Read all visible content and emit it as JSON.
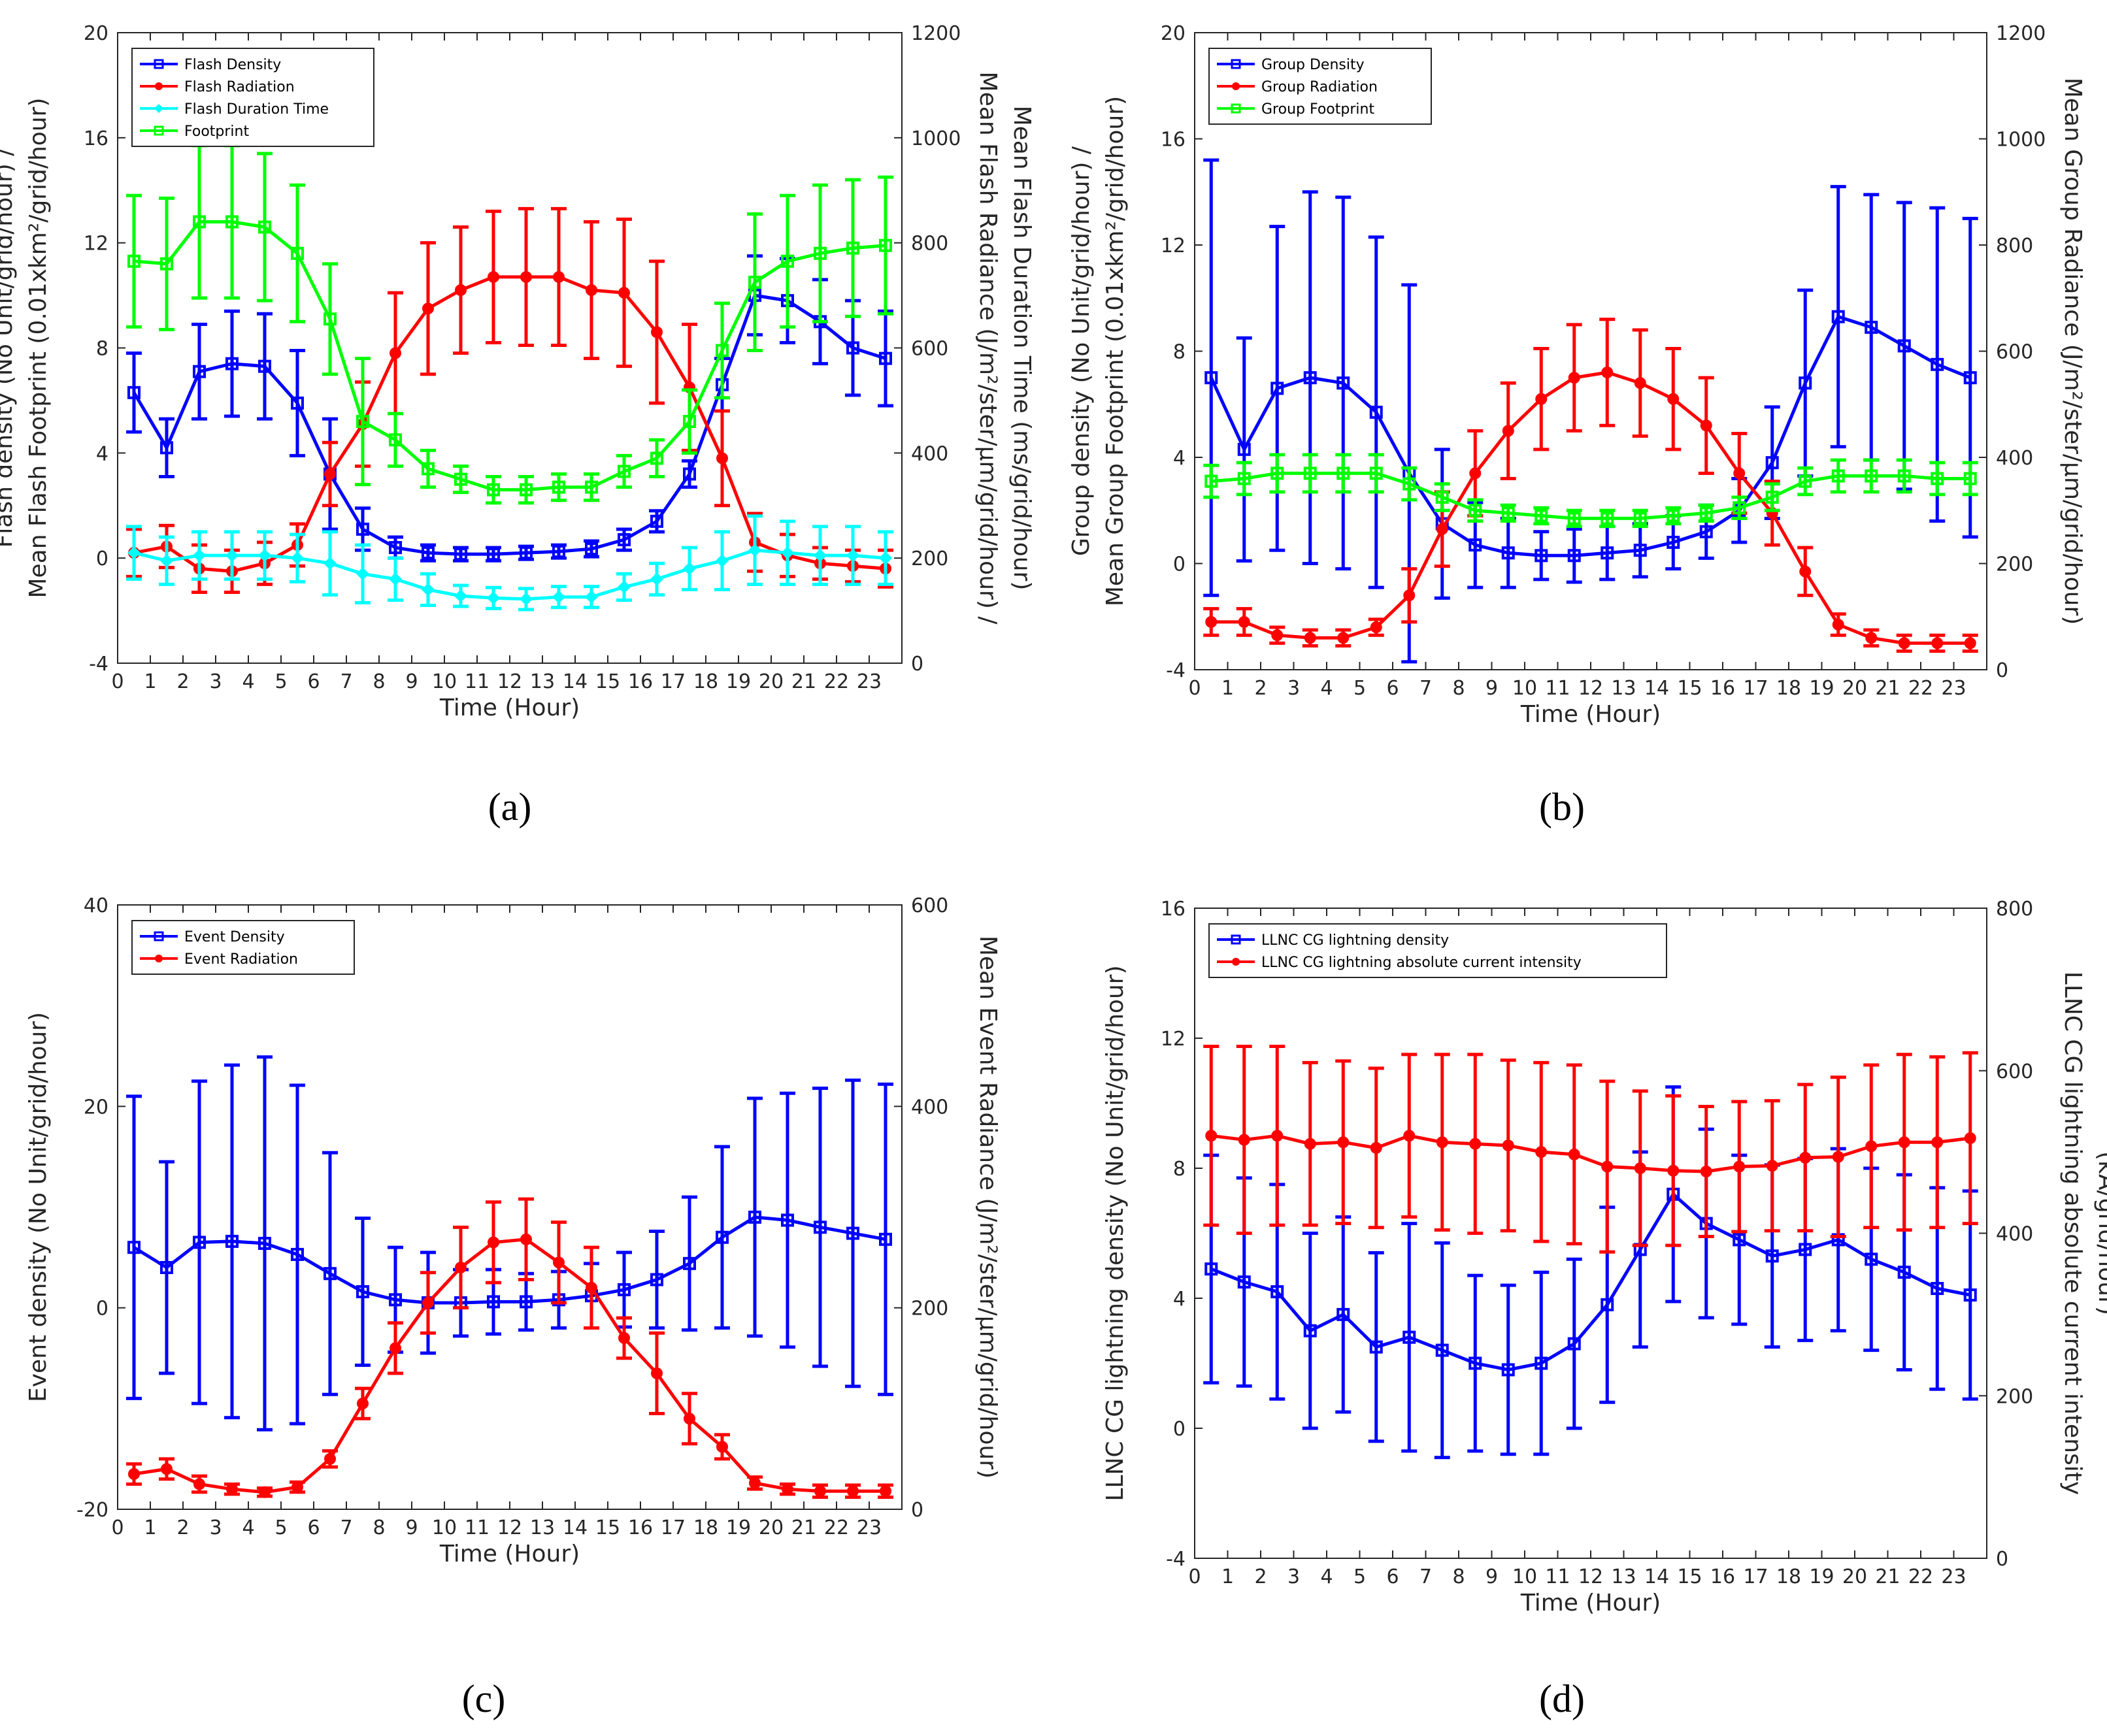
{
  "panels": [
    {
      "caption": "(a)",
      "xlabel": "Time (Hour)",
      "ylabel_left": [
        "Flash density (No Unit/grid/hour) /",
        "Mean Flash Footprint (0.01xkm²/grid/hour)"
      ],
      "ylabel_right": [
        "Mean Flash Radiance (J/m²/ster/μm/grid/hour) /",
        "Mean Flash Duration Time (ms/grid/hour)"
      ],
      "ylim_left": [
        -4,
        20
      ],
      "yticks_left": [
        -4,
        0,
        4,
        8,
        12,
        16,
        20
      ],
      "ylim_right": [
        0,
        1200
      ],
      "yticks_right": [
        0,
        200,
        400,
        600,
        800,
        1000,
        1200
      ],
      "xticks": [
        0,
        1,
        2,
        3,
        4,
        5,
        6,
        7,
        8,
        9,
        10,
        11,
        12,
        13,
        14,
        15,
        16,
        17,
        18,
        19,
        20,
        21,
        22,
        23
      ],
      "legend": [
        "Flash Density",
        "Flash Radiation",
        "Flash Duration Time",
        "Footprint"
      ]
    },
    {
      "caption": "(b)",
      "xlabel": "Time (Hour)",
      "ylabel_left": [
        "Group density (No Unit/grid/hour) /",
        "Mean Group Footprint (0.01xkm²/grid/hour)"
      ],
      "ylabel_right": [
        "Mean Group Radiance (J/m²/ster/μm/grid/hour)"
      ],
      "ylim_left": [
        -4,
        20
      ],
      "yticks_left": [
        -4,
        0,
        4,
        8,
        12,
        16,
        20
      ],
      "ylim_right": [
        0,
        1200
      ],
      "yticks_right": [
        0,
        200,
        400,
        600,
        800,
        1000,
        1200
      ],
      "xticks": [
        0,
        1,
        2,
        3,
        4,
        5,
        6,
        7,
        8,
        9,
        10,
        11,
        12,
        13,
        14,
        15,
        16,
        17,
        18,
        19,
        20,
        21,
        22,
        23
      ],
      "legend": [
        "Group Density",
        "Group Radiation",
        "Group Footprint"
      ]
    },
    {
      "caption": "(c)",
      "xlabel": "Time (Hour)",
      "ylabel_left": [
        "Event density (No Unit/grid/hour)"
      ],
      "ylabel_right": [
        "Mean Event Radiance (J/m²/ster/μm/grid/hour)"
      ],
      "ylim_left": [
        -20,
        40
      ],
      "yticks_left": [
        -20,
        0,
        20,
        40
      ],
      "ylim_right": [
        0,
        600
      ],
      "yticks_right": [
        0,
        200,
        400,
        600
      ],
      "xticks": [
        0,
        1,
        2,
        3,
        4,
        5,
        6,
        7,
        8,
        9,
        10,
        11,
        12,
        13,
        14,
        15,
        16,
        17,
        18,
        19,
        20,
        21,
        22,
        23
      ],
      "legend": [
        "Event Density",
        "Event Radiation"
      ]
    },
    {
      "caption": "(d)",
      "xlabel": "Time (Hour)",
      "ylabel_left": [
        "LLNC CG lightning density (No Unit/grid/hour)"
      ],
      "ylabel_right": [
        "LLNC CG lightning absolute current intensity",
        "(kA/grid/hour)"
      ],
      "ylim_left": [
        -4,
        16
      ],
      "yticks_left": [
        -4,
        0,
        4,
        8,
        12,
        16
      ],
      "ylim_right": [
        0,
        800
      ],
      "yticks_right": [
        0,
        200,
        400,
        600,
        800
      ],
      "xticks": [
        0,
        1,
        2,
        3,
        4,
        5,
        6,
        7,
        8,
        9,
        10,
        11,
        12,
        13,
        14,
        15,
        16,
        17,
        18,
        19,
        20,
        21,
        22,
        23
      ],
      "legend": [
        "LLNC CG lightning density",
        "LLNC CG lightning absolute current intensity"
      ]
    }
  ],
  "chart_data": [
    {
      "type": "line",
      "x": [
        0.5,
        1.5,
        2.5,
        3.5,
        4.5,
        5.5,
        6.5,
        7.5,
        8.5,
        9.5,
        10.5,
        11.5,
        12.5,
        13.5,
        14.5,
        15.5,
        16.5,
        17.5,
        18.5,
        19.5,
        20.5,
        21.5,
        22.5,
        23.5
      ],
      "xlim": [
        0,
        24
      ],
      "series": [
        {
          "name": "Flash Density",
          "axis": "left",
          "color": "#0000ff",
          "marker": "square",
          "values": [
            6.3,
            4.2,
            7.1,
            7.4,
            7.3,
            5.9,
            3.2,
            1.1,
            0.4,
            0.2,
            0.15,
            0.15,
            0.2,
            0.25,
            0.35,
            0.7,
            1.4,
            3.2,
            6.6,
            10.0,
            9.8,
            9.0,
            8.0,
            7.6
          ],
          "err": [
            1.5,
            1.1,
            1.8,
            2.0,
            2.0,
            2.0,
            2.1,
            0.8,
            0.4,
            0.3,
            0.25,
            0.25,
            0.25,
            0.25,
            0.3,
            0.4,
            0.4,
            0.5,
            1.0,
            1.5,
            1.6,
            1.6,
            1.8,
            1.8
          ]
        },
        {
          "name": "Flash Radiation",
          "axis": "right",
          "color": "#ff0000",
          "marker": "circle",
          "values": [
            210,
            222,
            180,
            175,
            190,
            225,
            360,
            455,
            590,
            675,
            710,
            735,
            735,
            735,
            710,
            705,
            630,
            525,
            390,
            230,
            205,
            190,
            185,
            180
          ],
          "err": [
            45,
            40,
            45,
            40,
            40,
            40,
            60,
            80,
            115,
            125,
            120,
            125,
            130,
            130,
            130,
            140,
            135,
            120,
            90,
            55,
            40,
            30,
            30,
            35
          ]
        },
        {
          "name": "Flash Duration Time",
          "axis": "right",
          "color": "#00ffff",
          "marker": "diamond",
          "values": [
            210,
            195,
            205,
            205,
            205,
            200,
            190,
            170,
            160,
            140,
            128,
            124,
            122,
            126,
            126,
            145,
            160,
            180,
            195,
            215,
            210,
            205,
            205,
            200
          ],
          "err": [
            50,
            45,
            45,
            45,
            45,
            45,
            60,
            55,
            40,
            30,
            20,
            20,
            20,
            20,
            20,
            25,
            30,
            40,
            55,
            65,
            60,
            55,
            55,
            50
          ]
        },
        {
          "name": "Footprint",
          "axis": "left",
          "color": "#00ff00",
          "marker": "square",
          "values": [
            11.3,
            11.2,
            12.8,
            12.8,
            12.6,
            11.6,
            9.1,
            5.2,
            4.5,
            3.4,
            3.0,
            2.6,
            2.6,
            2.7,
            2.7,
            3.3,
            3.8,
            5.2,
            7.9,
            10.5,
            11.3,
            11.6,
            11.8,
            11.9
          ],
          "err": [
            2.5,
            2.5,
            2.9,
            2.9,
            2.8,
            2.6,
            2.1,
            2.4,
            1.0,
            0.7,
            0.5,
            0.5,
            0.5,
            0.5,
            0.5,
            0.6,
            0.7,
            1.2,
            1.8,
            2.6,
            2.5,
            2.6,
            2.6,
            2.6
          ]
        }
      ]
    },
    {
      "type": "line",
      "x": [
        0.5,
        1.5,
        2.5,
        3.5,
        4.5,
        5.5,
        6.5,
        7.5,
        8.5,
        9.5,
        10.5,
        11.5,
        12.5,
        13.5,
        14.5,
        15.5,
        16.5,
        17.5,
        18.5,
        19.5,
        20.5,
        21.5,
        22.5,
        23.5
      ],
      "xlim": [
        0,
        24
      ],
      "series": [
        {
          "name": "Group Density",
          "axis": "left",
          "color": "#0000ff",
          "marker": "square",
          "values": [
            7.0,
            4.3,
            6.6,
            7.0,
            6.8,
            5.7,
            3.4,
            1.5,
            0.7,
            0.4,
            0.3,
            0.3,
            0.4,
            0.5,
            0.8,
            1.2,
            2.0,
            3.8,
            6.8,
            9.3,
            8.9,
            8.2,
            7.5,
            7.0
          ],
          "err": [
            8.2,
            4.2,
            6.1,
            7.0,
            7.0,
            6.6,
            7.1,
            2.8,
            1.6,
            1.3,
            0.9,
            1.0,
            1.0,
            1.0,
            1.0,
            1.0,
            1.2,
            2.1,
            3.5,
            4.9,
            5.0,
            5.4,
            5.9,
            6.0
          ]
        },
        {
          "name": "Group Radiation",
          "axis": "right",
          "color": "#ff0000",
          "marker": "circle",
          "values": [
            90,
            90,
            65,
            60,
            60,
            80,
            140,
            265,
            370,
            450,
            510,
            550,
            560,
            540,
            510,
            460,
            370,
            295,
            185,
            85,
            60,
            50,
            50,
            50
          ],
          "err": [
            25,
            25,
            15,
            15,
            15,
            15,
            50,
            70,
            80,
            90,
            95,
            100,
            100,
            100,
            95,
            90,
            75,
            60,
            45,
            20,
            15,
            15,
            15,
            15
          ]
        },
        {
          "name": "Group Footprint",
          "axis": "left",
          "color": "#00ff00",
          "marker": "square",
          "values": [
            3.1,
            3.2,
            3.4,
            3.4,
            3.4,
            3.4,
            3.0,
            2.5,
            2.0,
            1.9,
            1.8,
            1.7,
            1.7,
            1.7,
            1.8,
            1.9,
            2.1,
            2.5,
            3.1,
            3.3,
            3.3,
            3.3,
            3.2,
            3.2
          ],
          "err": [
            0.6,
            0.6,
            0.7,
            0.7,
            0.7,
            0.7,
            0.6,
            0.5,
            0.4,
            0.3,
            0.3,
            0.3,
            0.3,
            0.3,
            0.3,
            0.3,
            0.4,
            0.5,
            0.5,
            0.6,
            0.6,
            0.6,
            0.6,
            0.6
          ]
        }
      ]
    },
    {
      "type": "line",
      "x": [
        0.5,
        1.5,
        2.5,
        3.5,
        4.5,
        5.5,
        6.5,
        7.5,
        8.5,
        9.5,
        10.5,
        11.5,
        12.5,
        13.5,
        14.5,
        15.5,
        16.5,
        17.5,
        18.5,
        19.5,
        20.5,
        21.5,
        22.5,
        23.5
      ],
      "xlim": [
        0,
        24
      ],
      "series": [
        {
          "name": "Event Density",
          "axis": "left",
          "color": "#0000ff",
          "marker": "square",
          "values": [
            6.0,
            4.0,
            6.5,
            6.6,
            6.4,
            5.3,
            3.4,
            1.6,
            0.8,
            0.5,
            0.5,
            0.6,
            0.6,
            0.8,
            1.2,
            1.8,
            2.8,
            4.4,
            7.0,
            9.0,
            8.7,
            8.0,
            7.4,
            6.8
          ],
          "err": [
            15,
            10.5,
            16,
            17.5,
            18.5,
            16.8,
            12,
            7.3,
            5.2,
            5,
            3.3,
            3.2,
            2.8,
            2.8,
            3.2,
            3.7,
            4.8,
            6.6,
            9.0,
            11.8,
            12.6,
            13.8,
            15.2,
            15.4
          ]
        },
        {
          "name": "Event Radiation",
          "axis": "right",
          "color": "#ff0000",
          "marker": "circle",
          "values": [
            35,
            40,
            25,
            20,
            17,
            22,
            50,
            105,
            160,
            205,
            240,
            265,
            268,
            245,
            220,
            170,
            135,
            90,
            62,
            26,
            20,
            18,
            18,
            18
          ],
          "err": [
            10,
            10,
            8,
            5,
            4,
            5,
            8,
            15,
            25,
            30,
            40,
            40,
            40,
            40,
            40,
            20,
            40,
            25,
            12,
            6,
            5,
            6,
            6,
            6
          ]
        }
      ]
    },
    {
      "type": "line",
      "x": [
        0.5,
        1.5,
        2.5,
        3.5,
        4.5,
        5.5,
        6.5,
        7.5,
        8.5,
        9.5,
        10.5,
        11.5,
        12.5,
        13.5,
        14.5,
        15.5,
        16.5,
        17.5,
        18.5,
        19.5,
        20.5,
        21.5,
        22.5,
        23.5
      ],
      "xlim": [
        0,
        24
      ],
      "series": [
        {
          "name": "LLNC CG lightning density",
          "axis": "left",
          "color": "#0000ff",
          "marker": "square",
          "values": [
            4.9,
            4.5,
            4.2,
            3.0,
            3.5,
            2.5,
            2.8,
            2.4,
            2.0,
            1.8,
            2.0,
            2.6,
            3.8,
            5.5,
            7.2,
            6.3,
            5.8,
            5.3,
            5.5,
            5.8,
            5.2,
            4.8,
            4.3,
            4.1
          ],
          "err": [
            3.5,
            3.2,
            3.3,
            3.0,
            3.0,
            2.9,
            3.5,
            3.3,
            2.7,
            2.6,
            2.8,
            2.6,
            3.0,
            3.0,
            3.3,
            2.9,
            2.6,
            2.8,
            2.8,
            2.8,
            2.8,
            3.0,
            3.1,
            3.2
          ]
        },
        {
          "name": "LLNC CG lightning absolute current intensity",
          "axis": "right",
          "color": "#ff0000",
          "marker": "circle",
          "values": [
            520,
            515,
            520,
            510,
            512,
            505,
            520,
            512,
            510,
            508,
            500,
            497,
            482,
            480,
            477,
            476,
            482,
            483,
            493,
            494,
            507,
            512,
            512,
            517
          ],
          "err": [
            110,
            115,
            110,
            100,
            100,
            98,
            100,
            108,
            110,
            105,
            110,
            110,
            105,
            95,
            92,
            80,
            80,
            80,
            90,
            98,
            100,
            108,
            105,
            105
          ]
        }
      ]
    }
  ]
}
